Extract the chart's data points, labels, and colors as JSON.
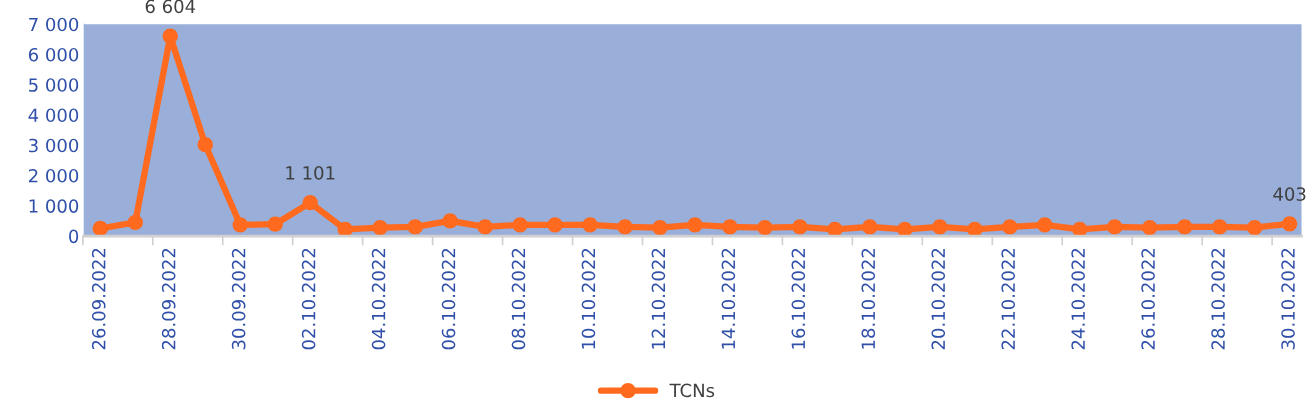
{
  "chart_data": {
    "type": "line",
    "categories": [
      "26.09.2022",
      null,
      "28.09.2022",
      null,
      "30.09.2022",
      null,
      "02.10.2022",
      null,
      "04.10.2022",
      null,
      "06.10.2022",
      null,
      "08.10.2022",
      null,
      "10.10.2022",
      null,
      "12.10.2022",
      null,
      "14.10.2022",
      null,
      "16.10.2022",
      null,
      "18.10.2022",
      null,
      "20.10.2022",
      null,
      "22.10.2022",
      null,
      "24.10.2022",
      null,
      "26.10.2022",
      null,
      "28.10.2022",
      null,
      "30.10.2022"
    ],
    "series": [
      {
        "name": "TCNs",
        "color": "#ff6a1f",
        "values": [
          250,
          450,
          6604,
          3020,
          370,
          390,
          1101,
          220,
          280,
          300,
          500,
          300,
          370,
          370,
          370,
          300,
          280,
          370,
          300,
          280,
          300,
          220,
          300,
          220,
          300,
          220,
          300,
          370,
          220,
          300,
          280,
          300,
          300,
          280,
          403
        ],
        "value_labels": [
          null,
          null,
          "6 604",
          null,
          null,
          null,
          "1 101",
          null,
          null,
          null,
          null,
          null,
          null,
          null,
          null,
          null,
          null,
          null,
          null,
          null,
          null,
          null,
          null,
          null,
          null,
          null,
          null,
          null,
          null,
          null,
          null,
          null,
          null,
          null,
          "403"
        ]
      }
    ],
    "ylim": [
      0,
      7000
    ],
    "yticks": [
      0,
      {
        "value": 1000,
        "label": "1 000"
      },
      {
        "value": 2000,
        "label": "2 000"
      },
      {
        "value": 3000,
        "label": "3 000"
      },
      {
        "value": 4000,
        "label": "4 000"
      },
      {
        "value": 5000,
        "label": "5 000"
      },
      {
        "value": 6000,
        "label": "6 000"
      },
      {
        "value": 7000,
        "label": "7 000"
      }
    ],
    "grid": false,
    "legend": "bottom",
    "marker": "circle",
    "line_style": "solid"
  }
}
